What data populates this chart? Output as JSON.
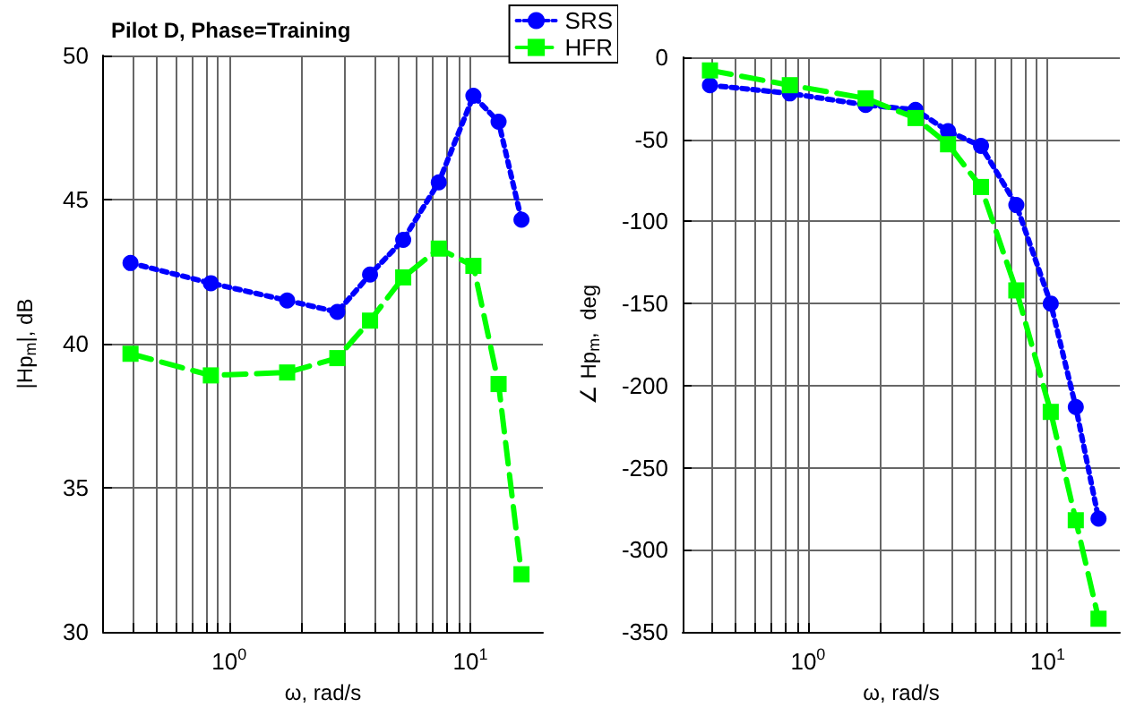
{
  "chart_data": [
    {
      "type": "line",
      "title": "Pilot D, Phase=Training",
      "xlabel": "ω, rad/s",
      "ylabel": "|Hp$_{m}$|, dB",
      "log": "x",
      "grid": true,
      "legend": "top right",
      "x": [
        0.39,
        0.84,
        1.74,
        2.81,
        3.84,
        5.27,
        7.4,
        10.3,
        13.1,
        16.3
      ],
      "xlim": [
        0.3,
        20
      ],
      "xticks": [
        {
          "value": 0.4,
          "label": null
        },
        {
          "value": 0.5,
          "label": null
        },
        {
          "value": 0.6,
          "label": null
        },
        {
          "value": 0.7,
          "label": null
        },
        {
          "value": 0.8,
          "label": null
        },
        {
          "value": 0.9,
          "label": null
        },
        {
          "value": 1,
          "label": "10$^{0}$"
        },
        {
          "value": 2,
          "label": null
        },
        {
          "value": 3,
          "label": null
        },
        {
          "value": 4,
          "label": null
        },
        {
          "value": 5,
          "label": null
        },
        {
          "value": 6,
          "label": null
        },
        {
          "value": 7,
          "label": null
        },
        {
          "value": 8,
          "label": null
        },
        {
          "value": 9,
          "label": null
        },
        {
          "value": 10,
          "label": "10$^{1}$"
        }
      ],
      "ylim": [
        30,
        50
      ],
      "yticks": [
        30,
        35,
        40,
        45,
        50
      ],
      "series": [
        {
          "name": "SRS",
          "color": "#0000ff",
          "marker": "circle",
          "line_style": "dotted",
          "values": [
            42.8,
            42.1,
            41.5,
            41.1,
            42.4,
            43.6,
            45.6,
            48.6,
            47.7,
            44.3
          ]
        },
        {
          "name": "HFR",
          "color": "#00ff00",
          "marker": "square",
          "line_style": "dashed",
          "values": [
            39.65,
            38.9,
            39.0,
            39.5,
            40.8,
            42.3,
            43.3,
            42.7,
            38.6,
            32.0
          ]
        }
      ]
    },
    {
      "type": "line",
      "xlabel": "ω, rad/s",
      "ylabel": "∠ Hp$_{m}$,  deg",
      "log": "x",
      "grid": true,
      "x": [
        0.39,
        0.84,
        1.74,
        2.81,
        3.84,
        5.27,
        7.4,
        10.3,
        13.1,
        16.3
      ],
      "xlim": [
        0.3,
        20
      ],
      "xticks": [
        {
          "value": 0.4,
          "label": null
        },
        {
          "value": 0.5,
          "label": null
        },
        {
          "value": 0.6,
          "label": null
        },
        {
          "value": 0.7,
          "label": null
        },
        {
          "value": 0.8,
          "label": null
        },
        {
          "value": 0.9,
          "label": null
        },
        {
          "value": 1,
          "label": "10$^{0}$"
        },
        {
          "value": 2,
          "label": null
        },
        {
          "value": 3,
          "label": null
        },
        {
          "value": 4,
          "label": null
        },
        {
          "value": 5,
          "label": null
        },
        {
          "value": 6,
          "label": null
        },
        {
          "value": 7,
          "label": null
        },
        {
          "value": 8,
          "label": null
        },
        {
          "value": 9,
          "label": null
        },
        {
          "value": 10,
          "label": "10$^{1}$"
        }
      ],
      "ylim": [
        -350,
        0
      ],
      "yticks": [
        -350,
        -300,
        -250,
        -200,
        -150,
        -100,
        -50,
        0
      ],
      "series": [
        {
          "color": "#0000ff",
          "marker": "circle",
          "line_style": "dotted",
          "values": [
            -17,
            -22,
            -29,
            -32,
            -45,
            -54,
            -90,
            -150,
            -213,
            -281
          ]
        },
        {
          "color": "#00ff00",
          "marker": "square",
          "line_style": "dashed",
          "values": [
            -8,
            -17,
            -25,
            -37,
            -53,
            -79,
            -142,
            -216,
            -282,
            -342
          ]
        }
      ]
    }
  ]
}
